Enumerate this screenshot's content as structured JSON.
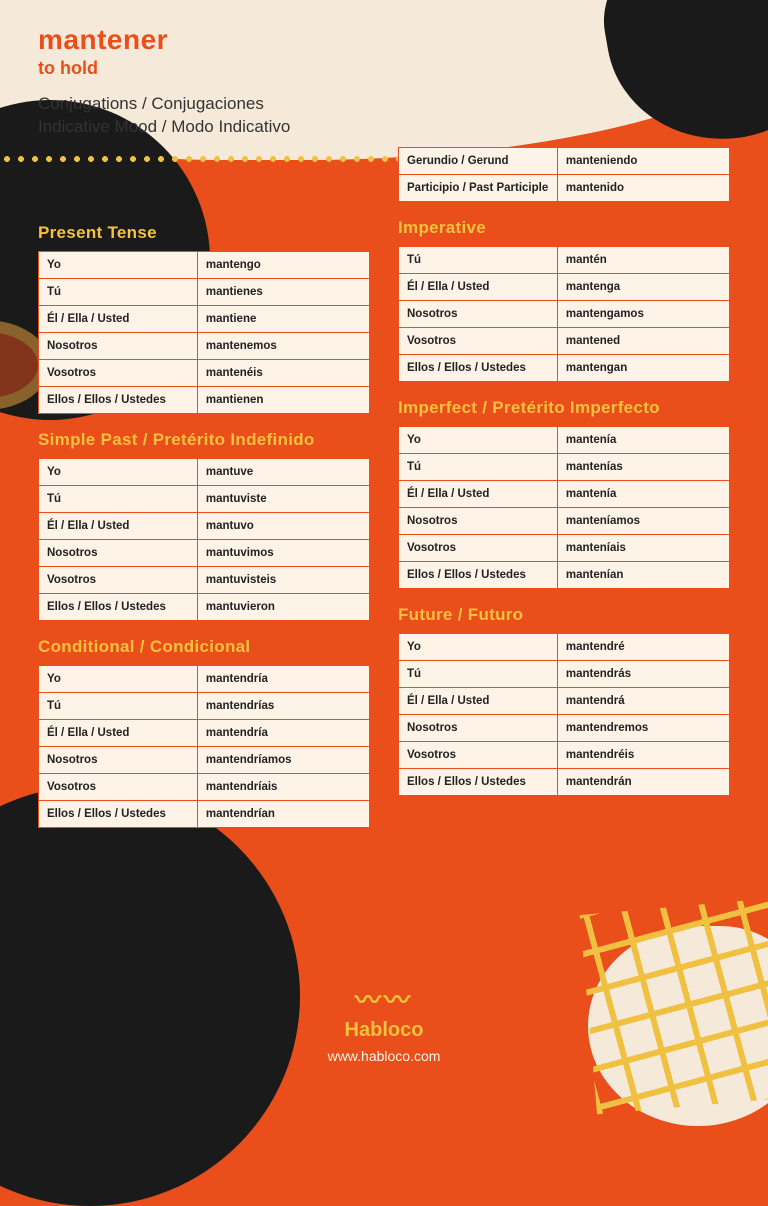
{
  "colors": {
    "background": "#e94e1b",
    "cream": "#f5ead9",
    "table_bg": "#fdf3e7",
    "dark": "#1a1a1a",
    "yellow": "#f5c23e",
    "title": "#e94e1b",
    "border": "#e94e1b",
    "text": "#222222"
  },
  "header": {
    "verb": "mantener",
    "translation": "to hold",
    "line1": "Conjugations / Conjugaciones",
    "line2": "Indicative Mood / Modo Indicativo"
  },
  "pronouns6": [
    "Yo",
    "Tú",
    "Él / Ella / Usted",
    "Nosotros",
    "Vosotros",
    "Ellos / Ellos / Ustedes"
  ],
  "pronouns5": [
    "Tú",
    "Él / Ella / Usted",
    "Nosotros",
    "Vosotros",
    "Ellos / Ellos / Ustedes"
  ],
  "nonfinite": {
    "gerund_label": "Gerundio / Gerund",
    "gerund": "manteniendo",
    "participle_label": "Participio / Past Participle",
    "participle": "mantenido"
  },
  "tenses": {
    "present": {
      "title": "Present Tense",
      "forms": [
        "mantengo",
        "mantienes",
        "mantiene",
        "mantenemos",
        "mantenéis",
        "mantienen"
      ]
    },
    "imperative": {
      "title": "Imperative",
      "forms": [
        "mantén",
        "mantenga",
        "mantengamos",
        "mantened",
        "mantengan"
      ]
    },
    "simple_past": {
      "title": "Simple Past / Pretérito Indefinido",
      "forms": [
        "mantuve",
        "mantuviste",
        "mantuvo",
        "mantuvimos",
        "mantuvisteis",
        "mantuvieron"
      ]
    },
    "imperfect": {
      "title": "Imperfect / Pretérito Imperfecto",
      "forms": [
        "mantenía",
        "mantenías",
        "mantenía",
        "manteníamos",
        "manteníais",
        "mantenían"
      ]
    },
    "conditional": {
      "title": "Conditional / Condicional",
      "forms": [
        "mantendría",
        "mantendrías",
        "mantendría",
        "mantendríamos",
        "mantendríais",
        "mantendrían"
      ]
    },
    "future": {
      "title": "Future / Futuro",
      "forms": [
        "mantendré",
        "mantendrás",
        "mantendrá",
        "mantendremos",
        "mantendréis",
        "mantendrán"
      ]
    }
  },
  "footer": {
    "brand": "Habloco",
    "url": "www.habloco.com"
  }
}
